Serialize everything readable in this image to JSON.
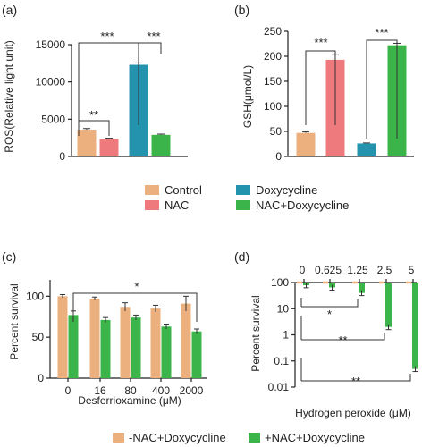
{
  "colors": {
    "control": "#EBB07E",
    "nac": "#EE7A7D",
    "doxy": "#2494AE",
    "nacdoxy": "#3BB54A"
  },
  "legend_top": {
    "control": "Control",
    "nac": "NAC",
    "doxy": "Doxycycline",
    "nacdoxy": "NAC+Doxycycline"
  },
  "legend_bottom": {
    "minus": "-NAC+Doxycycline",
    "plus": "+NAC+Doxycycline"
  },
  "chart_data": [
    {
      "panel": "(a)",
      "type": "bar",
      "ylabel": "ROS(Relative light unit)",
      "ylim": [
        0,
        15000
      ],
      "yticks": [
        "0",
        "5000",
        "10000",
        "15000"
      ],
      "categories": [
        "Control",
        "NAC",
        "Doxycycline",
        "NAC+Doxycycline"
      ],
      "values": [
        3600,
        2350,
        12300,
        2900
      ],
      "errors": [
        150,
        100,
        250,
        100
      ],
      "significance": [
        "**",
        "***",
        "***"
      ]
    },
    {
      "panel": "(b)",
      "type": "bar",
      "ylabel": "GSH(μmol/L)",
      "ylim": [
        0,
        250
      ],
      "yticks": [
        "0",
        "50",
        "100",
        "150",
        "200",
        "250"
      ],
      "categories": [
        "Control",
        "NAC",
        "Doxycycline",
        "NAC+Doxycycline"
      ],
      "values": [
        47,
        193,
        26,
        222
      ],
      "errors": [
        2,
        10,
        1,
        4
      ],
      "significance": [
        "***",
        "***"
      ]
    },
    {
      "panel": "(c)",
      "type": "bar",
      "xlabel": "Desferrioxamine (μM)",
      "ylabel": "Percent survival",
      "ylim": [
        0,
        120
      ],
      "yticks": [
        "0",
        "50",
        "100"
      ],
      "categories": [
        "0",
        "16",
        "80",
        "400",
        "2000"
      ],
      "series": [
        {
          "name": "-NAC+Doxycycline",
          "values": [
            100,
            97,
            87,
            85,
            91
          ],
          "errors": [
            2,
            2,
            5,
            4,
            9
          ]
        },
        {
          "name": "+NAC+Doxycycline",
          "values": [
            77,
            71,
            74,
            63,
            57
          ],
          "errors": [
            5,
            3,
            3,
            3,
            3
          ]
        }
      ],
      "significance": [
        "*"
      ]
    },
    {
      "panel": "(d)",
      "type": "bar",
      "xlabel": "Hydrogen peroxide (μM)",
      "ylabel": "Percent survival",
      "yscale": "log",
      "ylim": [
        0.01,
        100
      ],
      "yticks": [
        "100",
        "10",
        "1",
        "0.1",
        "0.01"
      ],
      "categories": [
        "0",
        "0.625",
        "1.25",
        "2.5",
        "5"
      ],
      "series": [
        {
          "name": "-NAC+Doxycycline",
          "values": [
            100,
            100,
            100,
            100,
            100
          ]
        },
        {
          "name": "+NAC+Doxycycline",
          "values": [
            80,
            65,
            40,
            2,
            0.05
          ]
        }
      ],
      "significance": [
        "*",
        "**",
        "**"
      ]
    }
  ]
}
